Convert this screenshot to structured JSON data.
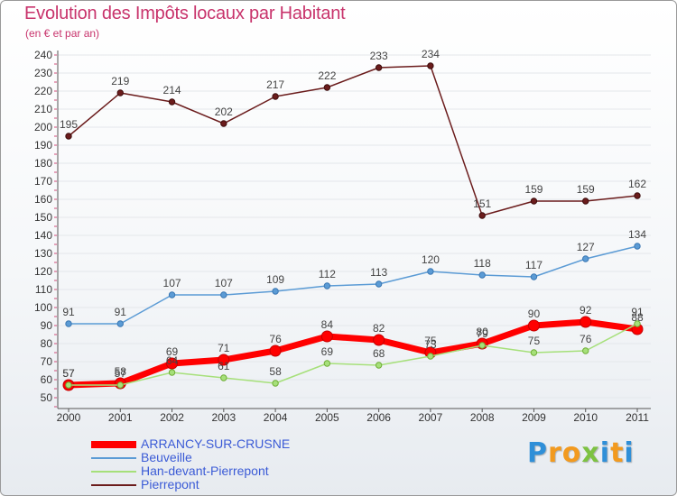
{
  "chart_data": {
    "type": "line",
    "title": "Evolution des Impôts locaux par Habitant",
    "subtitle": "(en € et par an)",
    "xlabel": "",
    "ylabel": "",
    "categories": [
      "2000",
      "2001",
      "2002",
      "2003",
      "2004",
      "2005",
      "2006",
      "2007",
      "2008",
      "2009",
      "2010",
      "2011"
    ],
    "ylim": [
      50,
      240
    ],
    "ytick_step": 10,
    "grid": true,
    "series": [
      {
        "name": "ARRANCY-SUR-CRUSNE",
        "color": "#ff0000",
        "dot_edge": "#c40000",
        "emphasis": true,
        "values": [
          57,
          58,
          69,
          71,
          76,
          84,
          82,
          75,
          80,
          90,
          92,
          88
        ]
      },
      {
        "name": "Beuveille",
        "color": "#5b9bd5",
        "dot_edge": "#3a77b3",
        "emphasis": false,
        "values": [
          91,
          91,
          107,
          107,
          109,
          112,
          113,
          120,
          118,
          117,
          127,
          134
        ]
      },
      {
        "name": "Han-devant-Pierrepont",
        "color": "#a6e07a",
        "dot_edge": "#6fae36",
        "emphasis": false,
        "values": [
          57,
          57,
          64,
          61,
          58,
          69,
          68,
          73,
          79,
          75,
          76,
          91
        ]
      },
      {
        "name": "Pierrepont",
        "color": "#6b1c1c",
        "dot_edge": "#3d0c0c",
        "emphasis": false,
        "values": [
          195,
          219,
          214,
          202,
          217,
          222,
          233,
          234,
          151,
          159,
          159,
          162
        ]
      }
    ]
  },
  "logo": {
    "text": "Proxiti",
    "colors": [
      "#2f8fd8",
      "#f29a1f",
      "#f29a1f",
      "#7dc242",
      "#2f8fd8",
      "#f29a1f",
      "#2f8fd8"
    ]
  }
}
